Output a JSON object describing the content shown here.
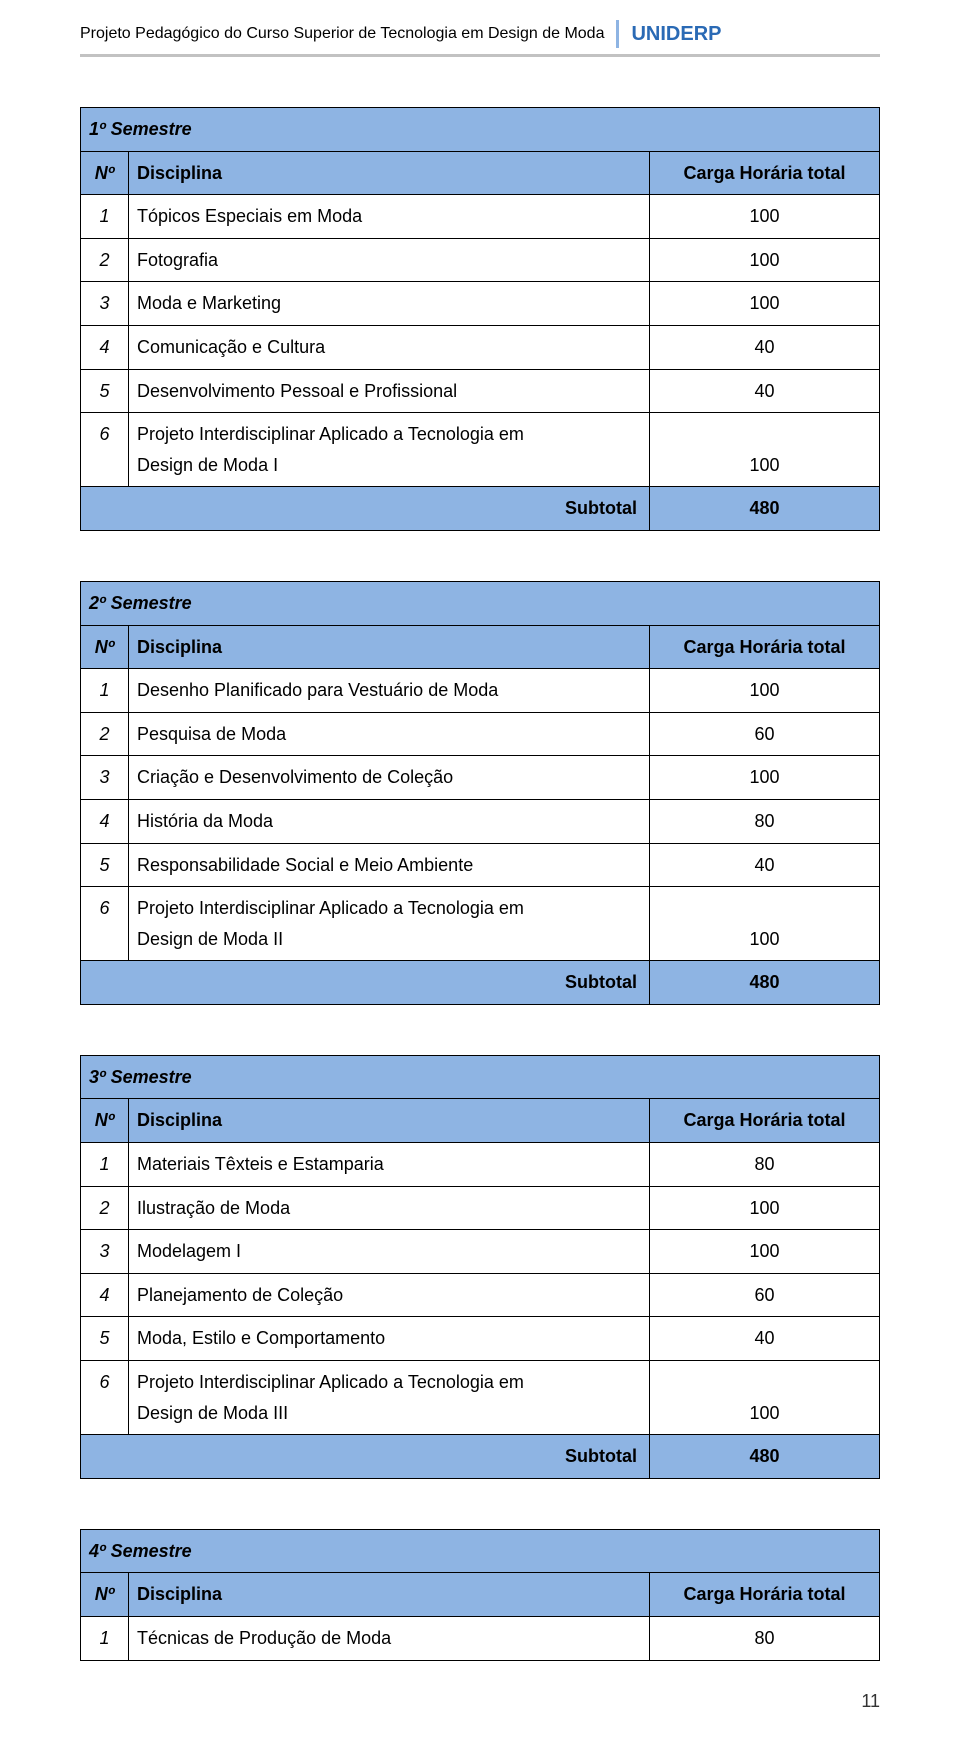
{
  "header": {
    "title": "Projeto Pedagógico do Curso Superior de Tecnologia em Design de Moda",
    "brand": "UNIDERP"
  },
  "colors": {
    "row_highlight": "#8eb4e3",
    "brand_text": "#2a6ab5",
    "border": "#000000",
    "header_rule": "#c2c2c2",
    "background": "#ffffff"
  },
  "labels": {
    "no": "Nº",
    "disciplina": "Disciplina",
    "carga": "Carga Horária total",
    "subtotal": "Subtotal"
  },
  "semesters": [
    {
      "title": "1º Semestre",
      "rows": [
        {
          "n": "1",
          "d": "Tópicos Especiais em Moda",
          "v": "100"
        },
        {
          "n": "2",
          "d": "Fotografia",
          "v": "100"
        },
        {
          "n": "3",
          "d": "Moda e Marketing",
          "v": "100"
        },
        {
          "n": "4",
          "d": "Comunicação e Cultura",
          "v": "40"
        },
        {
          "n": "5",
          "d": "Desenvolvimento Pessoal e Profissional",
          "v": "40"
        },
        {
          "n": "6",
          "d": "Projeto Interdisciplinar Aplicado a Tecnologia em\nDesign de Moda I",
          "v": "\n100"
        }
      ],
      "subtotal": "480"
    },
    {
      "title": "2º Semestre",
      "rows": [
        {
          "n": "1",
          "d": "Desenho Planificado para Vestuário de Moda",
          "v": "100"
        },
        {
          "n": "2",
          "d": "Pesquisa de Moda",
          "v": "60"
        },
        {
          "n": "3",
          "d": "Criação e Desenvolvimento de Coleção",
          "v": "100"
        },
        {
          "n": "4",
          "d": "História da Moda",
          "v": "80"
        },
        {
          "n": "5",
          "d": "Responsabilidade Social e Meio Ambiente",
          "v": "40"
        },
        {
          "n": "6",
          "d": "Projeto Interdisciplinar Aplicado a Tecnologia em\nDesign de Moda II",
          "v": "\n100"
        }
      ],
      "subtotal": "480"
    },
    {
      "title": "3º Semestre",
      "rows": [
        {
          "n": "1",
          "d": "Materiais Têxteis e Estamparia",
          "v": "80"
        },
        {
          "n": "2",
          "d": "Ilustração de Moda",
          "v": "100"
        },
        {
          "n": "3",
          "d": "Modelagem I",
          "v": "100"
        },
        {
          "n": "4",
          "d": "Planejamento de Coleção",
          "v": "60"
        },
        {
          "n": "5",
          "d": "Moda, Estilo e Comportamento",
          "v": "40"
        },
        {
          "n": "6",
          "d": "Projeto Interdisciplinar Aplicado a Tecnologia em\nDesign de Moda III",
          "v": "\n100"
        }
      ],
      "subtotal": "480"
    },
    {
      "title": "4º Semestre",
      "rows": [
        {
          "n": "1",
          "d": "Técnicas de Produção de Moda",
          "v": "80"
        }
      ]
    }
  ],
  "page_number": "11"
}
